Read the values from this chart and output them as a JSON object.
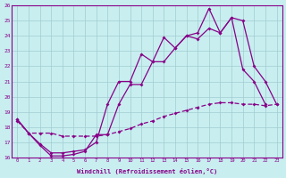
{
  "xlabel": "Windchill (Refroidissement éolien,°C)",
  "background_color": "#c8eef0",
  "line_color": "#880088",
  "grid_color": "#a0ccd0",
  "xlim_min": -0.5,
  "xlim_max": 23.5,
  "ylim_min": 16,
  "ylim_max": 26,
  "yticks": [
    16,
    17,
    18,
    19,
    20,
    21,
    22,
    23,
    24,
    25,
    26
  ],
  "xticks": [
    0,
    1,
    2,
    3,
    4,
    5,
    6,
    7,
    8,
    9,
    10,
    11,
    12,
    13,
    14,
    15,
    16,
    17,
    18,
    19,
    20,
    21,
    22,
    23
  ],
  "line1_x": [
    0,
    1,
    2,
    3,
    4,
    5,
    6,
    7,
    8,
    9,
    10,
    11,
    12,
    13,
    14,
    15,
    16,
    17,
    18,
    19,
    20,
    21,
    22
  ],
  "line1_y": [
    18.5,
    17.6,
    16.9,
    16.3,
    16.3,
    16.4,
    16.5,
    17.0,
    19.5,
    21.0,
    21.0,
    22.8,
    22.3,
    23.9,
    23.2,
    24.0,
    24.2,
    25.8,
    24.2,
    25.2,
    21.8,
    21.0,
    19.5
  ],
  "line2_x": [
    0,
    1,
    2,
    3,
    4,
    5,
    6,
    7,
    8,
    9,
    10,
    11,
    12,
    13,
    14,
    15,
    16,
    17,
    18,
    19,
    20,
    21,
    22,
    23
  ],
  "line2_y": [
    18.5,
    17.6,
    16.8,
    16.1,
    16.1,
    16.2,
    16.4,
    17.5,
    17.5,
    19.5,
    20.8,
    20.8,
    22.3,
    22.3,
    23.2,
    24.0,
    23.8,
    24.5,
    24.2,
    25.2,
    25.0,
    22.0,
    21.0,
    19.5
  ],
  "line3_x": [
    0,
    1,
    2,
    3,
    4,
    5,
    6,
    7,
    8,
    9,
    10,
    11,
    12,
    13,
    14,
    15,
    16,
    17,
    18,
    19,
    20,
    21,
    22,
    23
  ],
  "line3_y": [
    18.4,
    17.6,
    17.6,
    17.6,
    17.4,
    17.4,
    17.4,
    17.4,
    17.5,
    17.7,
    17.9,
    18.2,
    18.4,
    18.7,
    18.9,
    19.1,
    19.3,
    19.5,
    19.6,
    19.6,
    19.5,
    19.5,
    19.4,
    19.5
  ]
}
